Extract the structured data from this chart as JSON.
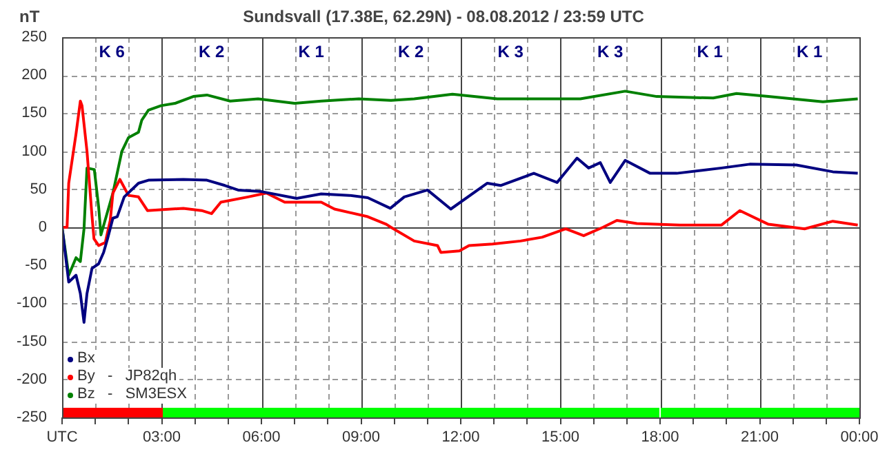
{
  "chart_data": {
    "type": "line",
    "title": "Sundsvall (17.38E, 62.29N) - 08.08.2012 / 23:59  UTC",
    "ylabel": "nT",
    "annotations": [
      "K 6",
      "K 2",
      "K 1",
      "K 2",
      "K 3",
      "K 3",
      "K 1",
      "K 1"
    ],
    "xlim": [
      0,
      24
    ],
    "xticks": [
      {
        "value": 0,
        "label": "UTC"
      },
      {
        "value": 1,
        "label": null
      },
      {
        "value": 2,
        "label": null
      },
      {
        "value": 3,
        "label": "03:00"
      },
      {
        "value": 4,
        "label": null
      },
      {
        "value": 5,
        "label": null
      },
      {
        "value": 6,
        "label": "06:00"
      },
      {
        "value": 7,
        "label": null
      },
      {
        "value": 8,
        "label": null
      },
      {
        "value": 9,
        "label": "09:00"
      },
      {
        "value": 10,
        "label": null
      },
      {
        "value": 11,
        "label": null
      },
      {
        "value": 12,
        "label": "12:00"
      },
      {
        "value": 13,
        "label": null
      },
      {
        "value": 14,
        "label": null
      },
      {
        "value": 15,
        "label": "15:00"
      },
      {
        "value": 16,
        "label": null
      },
      {
        "value": 17,
        "label": null
      },
      {
        "value": 18,
        "label": "18:00"
      },
      {
        "value": 19,
        "label": null
      },
      {
        "value": 20,
        "label": null
      },
      {
        "value": 21,
        "label": "21:00"
      },
      {
        "value": 22,
        "label": null
      },
      {
        "value": 23,
        "label": null
      },
      {
        "value": 24,
        "label": "00:00"
      }
    ],
    "ylim": [
      -250,
      250
    ],
    "yticks": [
      -250,
      -200,
      -150,
      -100,
      -50,
      0,
      50,
      100,
      150,
      200,
      250
    ],
    "grid": true,
    "legend": "bottom left",
    "marker": "none",
    "line_style": "solid",
    "series": [
      {
        "name": "Bx",
        "color": "#000080",
        "x": [
          0,
          0.2,
          0.42,
          0.55,
          0.66,
          0.75,
          0.9,
          1.1,
          1.25,
          1.37,
          1.53,
          1.66,
          1.87,
          2.3,
          2.6,
          3.65,
          4.36,
          4.9,
          5.3,
          6.0,
          7.06,
          7.8,
          8.65,
          9.2,
          9.88,
          10.3,
          11.0,
          11.7,
          12.8,
          13.2,
          14.2,
          14.9,
          15.5,
          15.85,
          16.2,
          16.5,
          16.95,
          17.7,
          18.5,
          19.85,
          20.7,
          22.1,
          23.2,
          23.95
        ],
        "values": [
          0,
          -72,
          -63,
          -87,
          -125,
          -87,
          -54,
          -48,
          -33,
          -15,
          12,
          14,
          40,
          58,
          62,
          63,
          62,
          55,
          49,
          47,
          38,
          44,
          42,
          39,
          25,
          40,
          49,
          24,
          58,
          55,
          71,
          59,
          91,
          78,
          85,
          59,
          88,
          71,
          71,
          78,
          83,
          82,
          73,
          71
        ]
      },
      {
        "name": "By   -   JP82qh",
        "color": "#ff0000",
        "x": [
          0,
          0.15,
          0.2,
          0.42,
          0.55,
          0.6,
          0.75,
          0.9,
          0.96,
          1.1,
          1.3,
          1.45,
          1.53,
          1.74,
          2.0,
          2.3,
          2.57,
          3.65,
          4.2,
          4.5,
          4.78,
          5.6,
          6.15,
          6.7,
          7.8,
          8.2,
          9.2,
          9.76,
          9.9,
          10.6,
          11.3,
          11.4,
          11.96,
          12.25,
          12.96,
          13.8,
          14.45,
          15.16,
          15.7,
          16.28,
          16.7,
          17.3,
          18.6,
          19.85,
          20.4,
          21.26,
          22.35,
          23.2,
          23.95
        ],
        "values": [
          0,
          0,
          58,
          123,
          166,
          160,
          100,
          15,
          -15,
          -24,
          -20,
          9,
          45,
          63,
          42,
          40,
          22,
          25,
          22,
          18,
          33,
          40,
          45,
          33,
          33,
          24,
          14,
          4,
          0,
          -18,
          -24,
          -33,
          -31,
          -24,
          -22,
          -18,
          -13,
          -2,
          -11,
          0,
          9,
          5,
          3,
          3,
          22,
          4,
          -2,
          8,
          3
        ]
      },
      {
        "name": "Bz   -   SM3ESX",
        "color": "#008000",
        "x": [
          0,
          0.2,
          0.42,
          0.55,
          0.66,
          0.75,
          0.97,
          1.1,
          1.17,
          1.3,
          1.53,
          1.8,
          2.0,
          2.3,
          2.4,
          2.6,
          2.98,
          3.4,
          3.95,
          4.36,
          5.06,
          5.9,
          7.0,
          7.8,
          8.93,
          9.9,
          10.6,
          11.75,
          13.1,
          14.9,
          15.6,
          16.95,
          17.9,
          19.6,
          20.3,
          21.26,
          22.9,
          23.95
        ],
        "values": [
          0,
          -63,
          -40,
          -45,
          -2,
          78,
          76,
          27,
          -10,
          10,
          45,
          100,
          118,
          125,
          141,
          154,
          160,
          163,
          172,
          174,
          166,
          169,
          163,
          166,
          169,
          167,
          169,
          175,
          169,
          169,
          169,
          179,
          172,
          170,
          176,
          172,
          165,
          169
        ]
      }
    ]
  }
}
